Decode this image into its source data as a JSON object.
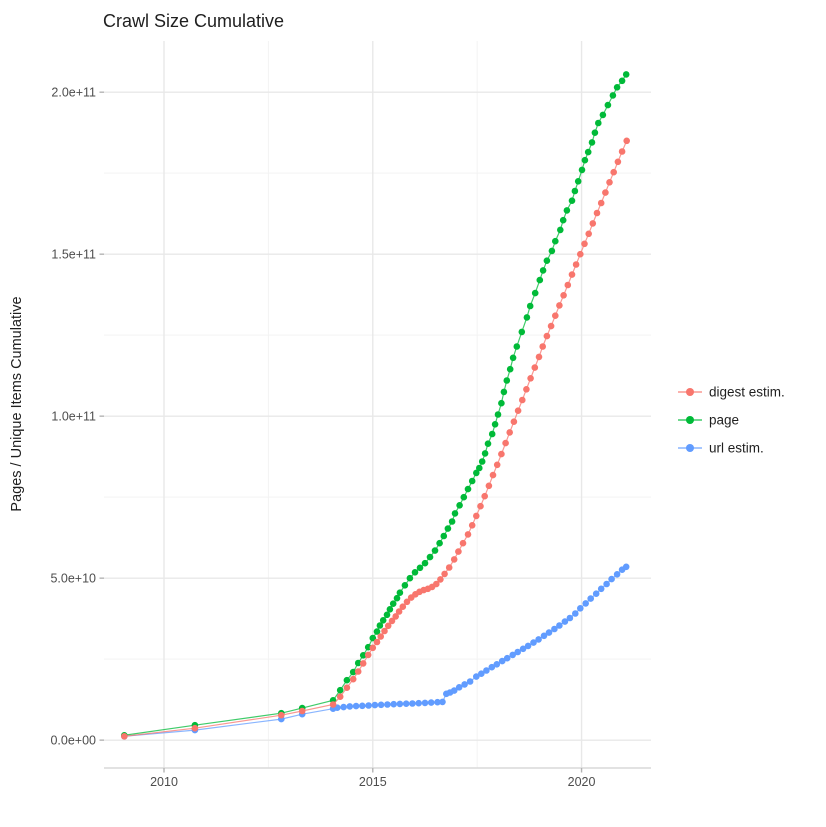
{
  "title": "Crawl Size Cumulative",
  "axes": {
    "y_title": "Pages / Unique Items Cumulative",
    "y_ticks": [
      {
        "label": "0.0e+00",
        "value_b": 0
      },
      {
        "label": "5.0e+10",
        "value_b": 50
      },
      {
        "label": "1.0e+11",
        "value_b": 100
      },
      {
        "label": "1.5e+11",
        "value_b": 150
      },
      {
        "label": "2.0e+11",
        "value_b": 200
      }
    ],
    "x_ticks": [
      {
        "label": "2010",
        "year": 2010
      },
      {
        "label": "2015",
        "year": 2015
      },
      {
        "label": "2020",
        "year": 2020
      }
    ]
  },
  "legend": [
    {
      "name": "digest estim.",
      "color": "#F8766D"
    },
    {
      "name": "page",
      "color": "#00BA38"
    },
    {
      "name": "url estim.",
      "color": "#619CFF"
    }
  ],
  "colors": {
    "grid_major": "#e8e8e8",
    "grid_minor": "#f3f3f3",
    "axis_line": "#d9d9d9",
    "tick_mark": "#b3b3b3",
    "tick_text": "#4d4d4d"
  },
  "chart_data": {
    "type": "scatter",
    "title": "Crawl Size Cumulative",
    "xlabel": "",
    "ylabel": "Pages / Unique Items Cumulative",
    "value_unit": "1e9 pages (billions)",
    "x_range": [
      2008.563,
      2021.663
    ],
    "y_range_b": [
      -8.6,
      215.8
    ],
    "x_major": [
      2010,
      2015,
      2020
    ],
    "x_minor": [
      2012.5,
      2017.5
    ],
    "y_major_b": [
      0,
      50,
      100,
      150,
      200
    ],
    "y_minor_b": [
      25,
      75,
      125,
      175
    ],
    "grid": true,
    "legend_position": "right",
    "series": [
      {
        "name": "digest estim.",
        "color": "#F8766D",
        "z": 3,
        "points": [
          [
            2009.05,
            1.2
          ],
          [
            2010.74,
            3.7
          ],
          [
            2012.81,
            7.7
          ],
          [
            2013.31,
            9.0
          ],
          [
            2014.05,
            11.0
          ],
          [
            2014.22,
            13.4
          ],
          [
            2014.38,
            16.2
          ],
          [
            2014.53,
            18.8
          ],
          [
            2014.65,
            21.2
          ],
          [
            2014.77,
            23.7
          ],
          [
            2014.89,
            26.3
          ],
          [
            2015.0,
            28.5
          ],
          [
            2015.1,
            30.3
          ],
          [
            2015.19,
            32.0
          ],
          [
            2015.28,
            33.7
          ],
          [
            2015.37,
            35.3
          ],
          [
            2015.46,
            36.8
          ],
          [
            2015.55,
            38.2
          ],
          [
            2015.63,
            39.7
          ],
          [
            2015.72,
            41.2
          ],
          [
            2015.82,
            42.7
          ],
          [
            2015.92,
            44.0
          ],
          [
            2016.02,
            45.0
          ],
          [
            2016.12,
            45.8
          ],
          [
            2016.22,
            46.3
          ],
          [
            2016.32,
            46.7
          ],
          [
            2016.42,
            47.3
          ],
          [
            2016.52,
            48.2
          ],
          [
            2016.62,
            49.6
          ],
          [
            2016.72,
            51.3
          ],
          [
            2016.83,
            53.3
          ],
          [
            2016.95,
            55.8
          ],
          [
            2017.05,
            58.2
          ],
          [
            2017.16,
            60.8
          ],
          [
            2017.28,
            63.5
          ],
          [
            2017.38,
            66.3
          ],
          [
            2017.48,
            69.2
          ],
          [
            2017.58,
            72.2
          ],
          [
            2017.68,
            75.3
          ],
          [
            2017.78,
            78.5
          ],
          [
            2017.88,
            81.8
          ],
          [
            2017.98,
            85.0
          ],
          [
            2018.08,
            88.3
          ],
          [
            2018.18,
            91.7
          ],
          [
            2018.28,
            95.0
          ],
          [
            2018.38,
            98.3
          ],
          [
            2018.48,
            101.7
          ],
          [
            2018.58,
            105.0
          ],
          [
            2018.68,
            108.3
          ],
          [
            2018.78,
            111.7
          ],
          [
            2018.88,
            115.0
          ],
          [
            2018.98,
            118.3
          ],
          [
            2019.07,
            121.5
          ],
          [
            2019.17,
            124.7
          ],
          [
            2019.27,
            127.8
          ],
          [
            2019.37,
            131.0
          ],
          [
            2019.47,
            134.2
          ],
          [
            2019.57,
            137.3
          ],
          [
            2019.67,
            140.5
          ],
          [
            2019.77,
            143.7
          ],
          [
            2019.87,
            146.8
          ],
          [
            2019.97,
            150.0
          ],
          [
            2020.07,
            153.2
          ],
          [
            2020.17,
            156.3
          ],
          [
            2020.27,
            159.5
          ],
          [
            2020.37,
            162.7
          ],
          [
            2020.47,
            165.8
          ],
          [
            2020.57,
            169.0
          ],
          [
            2020.67,
            172.2
          ],
          [
            2020.77,
            175.3
          ],
          [
            2020.87,
            178.5
          ],
          [
            2020.97,
            181.7
          ],
          [
            2021.08,
            185.0
          ]
        ]
      },
      {
        "name": "page",
        "color": "#00BA38",
        "z": 2,
        "points": [
          [
            2009.05,
            1.5
          ],
          [
            2010.74,
            4.6
          ],
          [
            2012.81,
            8.3
          ],
          [
            2013.31,
            9.9
          ],
          [
            2014.05,
            12.3
          ],
          [
            2014.22,
            15.4
          ],
          [
            2014.38,
            18.5
          ],
          [
            2014.53,
            21.0
          ],
          [
            2014.65,
            23.8
          ],
          [
            2014.77,
            26.2
          ],
          [
            2014.89,
            28.7
          ],
          [
            2015.0,
            31.5
          ],
          [
            2015.1,
            33.5
          ],
          [
            2015.17,
            35.4
          ],
          [
            2015.25,
            37.0
          ],
          [
            2015.34,
            38.7
          ],
          [
            2015.41,
            40.4
          ],
          [
            2015.49,
            42.1
          ],
          [
            2015.58,
            43.8
          ],
          [
            2015.65,
            45.5
          ],
          [
            2015.77,
            47.8
          ],
          [
            2015.89,
            50.0
          ],
          [
            2016.01,
            51.8
          ],
          [
            2016.13,
            53.2
          ],
          [
            2016.25,
            54.6
          ],
          [
            2016.37,
            56.5
          ],
          [
            2016.49,
            58.5
          ],
          [
            2016.6,
            60.8
          ],
          [
            2016.7,
            63.0
          ],
          [
            2016.8,
            65.3
          ],
          [
            2016.9,
            67.5
          ],
          [
            2016.97,
            70.0
          ],
          [
            2017.08,
            72.5
          ],
          [
            2017.18,
            75.0
          ],
          [
            2017.28,
            77.5
          ],
          [
            2017.38,
            80.0
          ],
          [
            2017.48,
            82.5
          ],
          [
            2017.55,
            84.0
          ],
          [
            2017.62,
            86.0
          ],
          [
            2017.69,
            88.5
          ],
          [
            2017.76,
            91.5
          ],
          [
            2017.86,
            94.5
          ],
          [
            2017.93,
            97.5
          ],
          [
            2018.0,
            100.5
          ],
          [
            2018.08,
            104.0
          ],
          [
            2018.14,
            107.5
          ],
          [
            2018.21,
            111.0
          ],
          [
            2018.29,
            114.5
          ],
          [
            2018.36,
            118.0
          ],
          [
            2018.45,
            121.5
          ],
          [
            2018.57,
            126.0
          ],
          [
            2018.69,
            130.5
          ],
          [
            2018.77,
            134.0
          ],
          [
            2018.89,
            138.0
          ],
          [
            2019.0,
            142.0
          ],
          [
            2019.08,
            145.0
          ],
          [
            2019.17,
            148.0
          ],
          [
            2019.29,
            151.0
          ],
          [
            2019.37,
            154.0
          ],
          [
            2019.49,
            157.5
          ],
          [
            2019.56,
            160.5
          ],
          [
            2019.65,
            163.5
          ],
          [
            2019.77,
            166.5
          ],
          [
            2019.84,
            169.5
          ],
          [
            2019.92,
            172.5
          ],
          [
            2020.01,
            176.0
          ],
          [
            2020.08,
            179.0
          ],
          [
            2020.16,
            181.5
          ],
          [
            2020.25,
            184.5
          ],
          [
            2020.32,
            187.5
          ],
          [
            2020.4,
            190.5
          ],
          [
            2020.51,
            193.0
          ],
          [
            2020.63,
            196.0
          ],
          [
            2020.75,
            199.0
          ],
          [
            2020.85,
            201.5
          ],
          [
            2020.97,
            203.5
          ],
          [
            2021.07,
            205.5
          ]
        ]
      },
      {
        "name": "url estim.",
        "color": "#619CFF",
        "z": 1,
        "points": [
          [
            2009.05,
            1.2
          ],
          [
            2010.74,
            3.1
          ],
          [
            2012.81,
            6.5
          ],
          [
            2013.31,
            8.0
          ],
          [
            2014.05,
            9.7
          ],
          [
            2014.15,
            10.0
          ],
          [
            2014.3,
            10.2
          ],
          [
            2014.45,
            10.4
          ],
          [
            2014.6,
            10.5
          ],
          [
            2014.75,
            10.6
          ],
          [
            2014.9,
            10.7
          ],
          [
            2015.05,
            10.8
          ],
          [
            2015.2,
            10.9
          ],
          [
            2015.35,
            11.0
          ],
          [
            2015.5,
            11.1
          ],
          [
            2015.65,
            11.2
          ],
          [
            2015.8,
            11.25
          ],
          [
            2015.95,
            11.3
          ],
          [
            2016.1,
            11.4
          ],
          [
            2016.25,
            11.5
          ],
          [
            2016.4,
            11.6
          ],
          [
            2016.55,
            11.7
          ],
          [
            2016.67,
            11.8
          ],
          [
            2016.76,
            14.3
          ],
          [
            2016.85,
            14.7
          ],
          [
            2016.95,
            15.3
          ],
          [
            2017.07,
            16.3
          ],
          [
            2017.2,
            17.2
          ],
          [
            2017.33,
            18.1
          ],
          [
            2017.48,
            19.6
          ],
          [
            2017.6,
            20.5
          ],
          [
            2017.72,
            21.5
          ],
          [
            2017.85,
            22.5
          ],
          [
            2017.97,
            23.4
          ],
          [
            2018.1,
            24.4
          ],
          [
            2018.22,
            25.3
          ],
          [
            2018.35,
            26.3
          ],
          [
            2018.47,
            27.2
          ],
          [
            2018.6,
            28.2
          ],
          [
            2018.72,
            29.1
          ],
          [
            2018.85,
            30.1
          ],
          [
            2018.97,
            31.1
          ],
          [
            2019.1,
            32.2
          ],
          [
            2019.22,
            33.2
          ],
          [
            2019.35,
            34.3
          ],
          [
            2019.47,
            35.4
          ],
          [
            2019.6,
            36.6
          ],
          [
            2019.72,
            37.7
          ],
          [
            2019.85,
            39.1
          ],
          [
            2019.97,
            40.7
          ],
          [
            2020.1,
            42.2
          ],
          [
            2020.22,
            43.7
          ],
          [
            2020.35,
            45.2
          ],
          [
            2020.47,
            46.7
          ],
          [
            2020.6,
            48.2
          ],
          [
            2020.72,
            49.7
          ],
          [
            2020.85,
            51.2
          ],
          [
            2020.97,
            52.6
          ],
          [
            2021.07,
            53.5
          ]
        ]
      }
    ]
  }
}
